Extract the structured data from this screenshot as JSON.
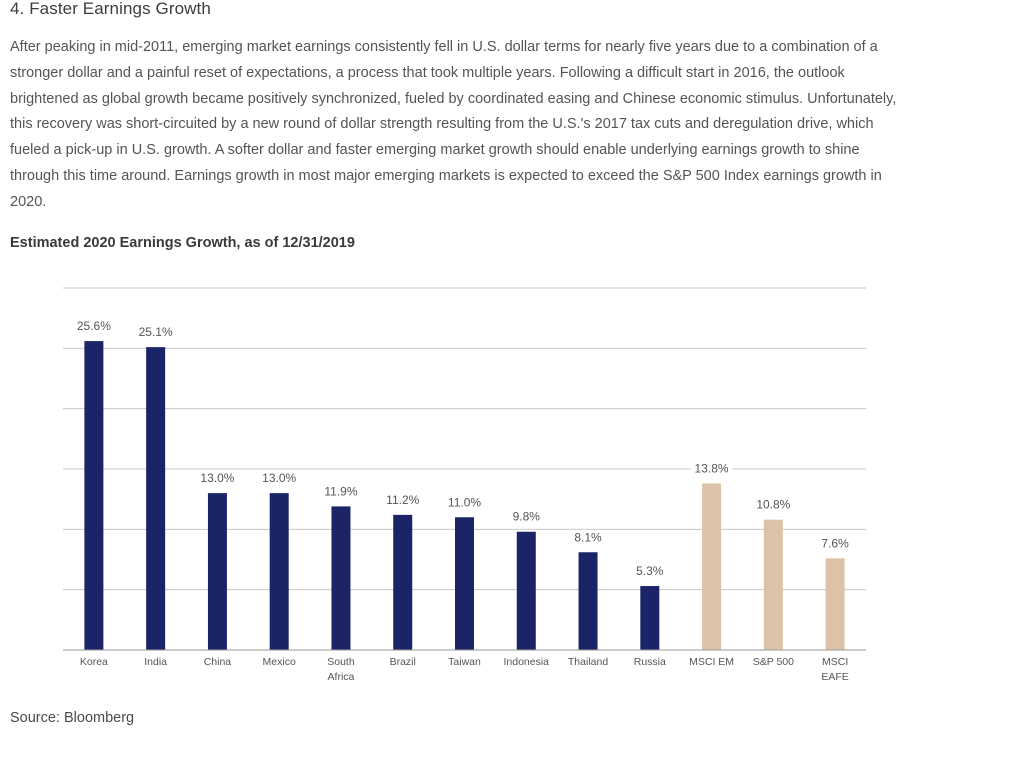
{
  "section_title": "4. Faster Earnings Growth",
  "paragraph": "After peaking in mid-2011, emerging market earnings consistently fell in U.S. dollar terms for nearly five years due to a combination of a stronger dollar and a painful reset of expectations, a process that took multiple years. Following a difficult start in 2016, the outlook brightened as global growth became positively synchronized, fueled by coordinated easing and Chinese economic stimulus. Unfortunately, this recovery was short-circuited by a new round of dollar strength resulting from the U.S.'s 2017 tax cuts and deregulation drive, which fueled a pick-up in U.S. growth. A softer dollar and faster emerging market growth should enable underlying earnings growth to shine through this time around. Earnings growth in most major emerging markets is expected to exceed the S&P 500 Index earnings growth in 2020.",
  "chart_title": "Estimated 2020 Earnings Growth, as of 12/31/2019",
  "source": "Source: Bloomberg",
  "colors": {
    "emerging": "#1a2466",
    "benchmark": "#dcc2a6",
    "grid": "#c8c8c8",
    "axis": "#9a9a9a"
  },
  "chart_data": {
    "type": "bar",
    "title": "Estimated 2020 Earnings Growth, as of 12/31/2019",
    "xlabel": "",
    "ylabel": "",
    "ylim": [
      0,
      30
    ],
    "grid": true,
    "categories": [
      [
        "Korea"
      ],
      [
        "India"
      ],
      [
        "China"
      ],
      [
        "Mexico"
      ],
      [
        "South",
        "Africa"
      ],
      [
        "Brazil"
      ],
      [
        "Taiwan"
      ],
      [
        "Indonesia"
      ],
      [
        "Thailand"
      ],
      [
        "Russia"
      ],
      [
        "MSCI EM"
      ],
      [
        "S&P 500"
      ],
      [
        "MSCI",
        "EAFE"
      ]
    ],
    "values": [
      25.6,
      25.1,
      13.0,
      13.0,
      11.9,
      11.2,
      11.0,
      9.8,
      8.1,
      5.3,
      13.8,
      10.8,
      7.6
    ],
    "labels": [
      "25.6%",
      "25.1%",
      "13.0%",
      "13.0%",
      "11.9%",
      "11.2%",
      "11.0%",
      "9.8%",
      "8.1%",
      "5.3%",
      "13.8%",
      "10.8%",
      "7.6%"
    ],
    "groups": [
      "emerging",
      "emerging",
      "emerging",
      "emerging",
      "emerging",
      "emerging",
      "emerging",
      "emerging",
      "emerging",
      "emerging",
      "benchmark",
      "benchmark",
      "benchmark"
    ]
  }
}
